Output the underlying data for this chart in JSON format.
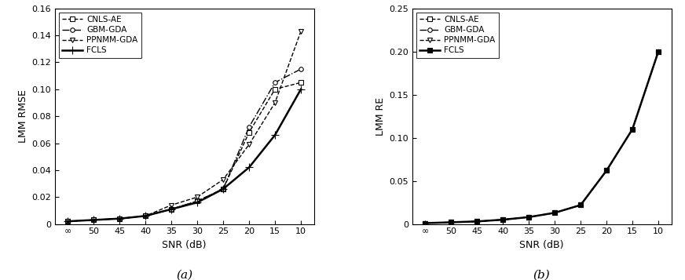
{
  "snr_labels": [
    "∞",
    "50",
    "45",
    "40",
    "35",
    "30",
    "25",
    "20",
    "15",
    "10"
  ],
  "snr_x": [
    0,
    1,
    2,
    3,
    4,
    5,
    6,
    7,
    8,
    9
  ],
  "plot_a": {
    "ylabel": "LMM RMSE",
    "xlabel": "SNR (dB)",
    "caption": "(a)",
    "ylim": [
      0,
      0.16
    ],
    "yticks": [
      0,
      0.02,
      0.04,
      0.06,
      0.08,
      0.1,
      0.12,
      0.14,
      0.16
    ],
    "series": [
      {
        "label": "CNLS-AE",
        "linestyle": "--",
        "marker": "s",
        "markerfacecolor": "white",
        "color": "black",
        "linewidth": 1.0,
        "markersize": 4,
        "data": [
          0.002,
          0.003,
          0.004,
          0.006,
          0.011,
          0.017,
          0.026,
          0.068,
          0.1,
          0.105
        ]
      },
      {
        "label": "GBM-GDA",
        "linestyle": "-.",
        "marker": "o",
        "markerfacecolor": "white",
        "color": "black",
        "linewidth": 1.0,
        "markersize": 4,
        "data": [
          0.002,
          0.003,
          0.004,
          0.006,
          0.011,
          0.017,
          0.026,
          0.072,
          0.105,
          0.115
        ]
      },
      {
        "label": "PPNMM-GDA",
        "linestyle": "--",
        "marker": "v",
        "markerfacecolor": "white",
        "color": "black",
        "linewidth": 1.0,
        "markersize": 5,
        "data": [
          0.002,
          0.003,
          0.004,
          0.006,
          0.014,
          0.02,
          0.033,
          0.059,
          0.09,
          0.143
        ]
      },
      {
        "label": "FCLS",
        "linestyle": "-",
        "marker": "+",
        "markerfacecolor": "black",
        "color": "black",
        "linewidth": 1.8,
        "markersize": 7,
        "data": [
          0.002,
          0.003,
          0.004,
          0.006,
          0.011,
          0.016,
          0.026,
          0.042,
          0.066,
          0.1
        ]
      }
    ]
  },
  "plot_b": {
    "ylabel": "LMM RE",
    "xlabel": "SNR (dB)",
    "caption": "(b)",
    "ylim": [
      0,
      0.25
    ],
    "yticks": [
      0,
      0.05,
      0.1,
      0.15,
      0.2,
      0.25
    ],
    "series": [
      {
        "label": "CNLS-AE",
        "linestyle": "--",
        "marker": "s",
        "markerfacecolor": "white",
        "color": "black",
        "linewidth": 1.0,
        "markersize": 4,
        "data": [
          0.001,
          0.002,
          0.003,
          0.005,
          0.008,
          0.013,
          0.022,
          0.062,
          0.11,
          0.2
        ]
      },
      {
        "label": "GBM-GDA",
        "linestyle": "-.",
        "marker": "o",
        "markerfacecolor": "white",
        "color": "black",
        "linewidth": 1.0,
        "markersize": 4,
        "data": [
          0.001,
          0.002,
          0.003,
          0.005,
          0.008,
          0.013,
          0.022,
          0.062,
          0.11,
          0.2
        ]
      },
      {
        "label": "PPNMM-GDA",
        "linestyle": "--",
        "marker": "v",
        "markerfacecolor": "white",
        "color": "black",
        "linewidth": 1.0,
        "markersize": 5,
        "data": [
          0.001,
          0.002,
          0.003,
          0.005,
          0.008,
          0.013,
          0.022,
          0.062,
          0.11,
          0.2
        ]
      },
      {
        "label": "FCLS",
        "linestyle": "-",
        "marker": "s",
        "markerfacecolor": "black",
        "color": "black",
        "linewidth": 1.8,
        "markersize": 4,
        "data": [
          0.001,
          0.002,
          0.003,
          0.005,
          0.008,
          0.013,
          0.022,
          0.062,
          0.11,
          0.2
        ]
      }
    ]
  },
  "legend_fontsize": 7.5,
  "tick_fontsize": 8,
  "label_fontsize": 9,
  "caption_fontsize": 11
}
